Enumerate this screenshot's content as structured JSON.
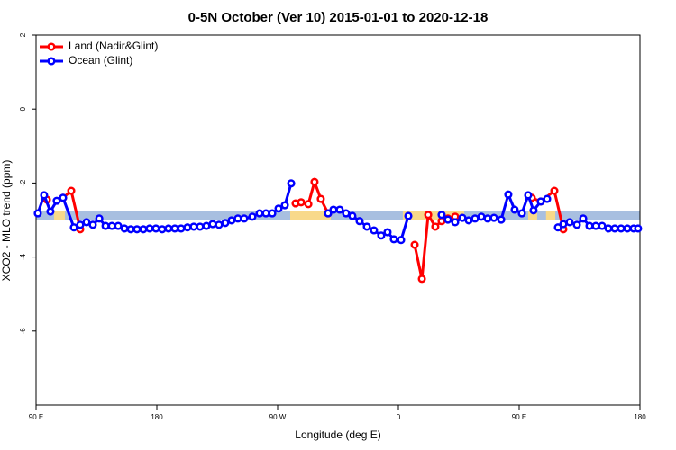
{
  "chart_data": {
    "type": "line",
    "title": "0-5N October (Ver 10)   2015-01-01 to 2020-12-18",
    "x_label": "Longitude (deg E)",
    "y_label": "XCO2 - MLO trend (ppm)",
    "xlim": [
      90,
      540
    ],
    "ylim": [
      -8,
      2
    ],
    "xticks": [
      {
        "value": 90,
        "label": "90 E"
      },
      180,
      {
        "value": 270,
        "label": "90 W"
      },
      {
        "value": 360,
        "label": "0"
      },
      {
        "value": 450,
        "label": "90 E"
      },
      {
        "value": 540,
        "label": "180"
      }
    ],
    "yticks": [
      -6,
      -4,
      -2,
      0,
      2
    ],
    "legend": "top-left",
    "background_bands": [
      {
        "x": [
          90,
          540
        ],
        "y": [
          -3.0,
          -2.75
        ],
        "color": "#a8bfe0"
      },
      {
        "x": [
          103.4,
          111.5
        ],
        "y": [
          -3.0,
          -2.75
        ],
        "color": "#f8d98a"
      },
      {
        "x": [
          279.4,
          309.6
        ],
        "y": [
          -3.0,
          -2.75
        ],
        "color": "#f8d98a"
      },
      {
        "x": [
          363.3,
          409
        ],
        "y": [
          -3.0,
          -2.75
        ],
        "color": "#f8d98a"
      },
      {
        "x": [
          456.7,
          463.4
        ],
        "y": [
          -3.0,
          -2.75
        ],
        "color": "#f8d98a"
      },
      {
        "x": [
          470,
          476.9
        ],
        "y": [
          -3.0,
          -2.75
        ],
        "color": "#f8d98a"
      }
    ],
    "series": [
      {
        "name": "Land (Nadir&Glint)",
        "color": "#ff0000",
        "x": [
          98.1,
          105,
          110.1,
          116.2,
          122.9,
          275.4,
          283.4,
          287.5,
          292.9,
          297.5,
          302.2,
          307.6,
          367.4,
          372.1,
          377.5,
          382.2,
          387.5,
          392.2,
          396.9,
          402.3,
          408,
          459.4,
          466.1,
          476.2,
          482.9
        ],
        "values": [
          -2.45,
          null,
          -2.4,
          -2.21,
          -3.25,
          null,
          -2.55,
          -2.52,
          -2.57,
          -1.97,
          -2.43,
          -2.82,
          null,
          -3.67,
          -4.59,
          -2.86,
          -3.18,
          -3.03,
          -2.96,
          -2.91,
          null,
          -2.4,
          -2.5,
          -2.21,
          -3.25
        ]
      },
      {
        "name": "Ocean (Glint)",
        "color": "#0000ff",
        "x": [
          91.3,
          96.0,
          100.7,
          105.4,
          110.1,
          118.2,
          122.9,
          127.6,
          132.3,
          137.1,
          141.8,
          146.5,
          151.2,
          155.9,
          160.6,
          165.2,
          169.9,
          174.6,
          179.3,
          184.0,
          188.7,
          193.4,
          198.1,
          202.8,
          207.5,
          212.2,
          216.9,
          221.6,
          226.3,
          231.0,
          235.7,
          240.4,
          245.1,
          251.2,
          256.6,
          261.3,
          266.0,
          270.7,
          275.4,
          280.1,
          290,
          307.6,
          311.6,
          316.3,
          321.0,
          325.7,
          331.1,
          336.5,
          341.8,
          347.2,
          351.9,
          356.6,
          362.0,
          367.4,
          380,
          392.2,
          396.9,
          402.3,
          407.7,
          412.4,
          417.1,
          421.8,
          426.5,
          431.2,
          436.6,
          441.9,
          446.6,
          452.0,
          456.7,
          460.7,
          466.1,
          470.8,
          475,
          478.9,
          482.9,
          487.6,
          493.0,
          497.7,
          502.4,
          507.1,
          511.8,
          516.5,
          521.2,
          525.9,
          530.6,
          535.3,
          538.6
        ],
        "values": [
          -2.82,
          -2.33,
          -2.77,
          -2.48,
          -2.4,
          -3.2,
          -3.13,
          -3.06,
          -3.13,
          -2.96,
          -3.16,
          -3.16,
          -3.16,
          -3.23,
          -3.25,
          -3.25,
          -3.25,
          -3.23,
          -3.23,
          -3.25,
          -3.23,
          -3.23,
          -3.23,
          -3.2,
          -3.18,
          -3.18,
          -3.16,
          -3.11,
          -3.13,
          -3.08,
          -3.01,
          -2.96,
          -2.96,
          -2.91,
          -2.82,
          -2.82,
          -2.82,
          -2.69,
          -2.6,
          -2.01,
          null,
          -2.82,
          -2.72,
          -2.72,
          -2.82,
          -2.89,
          -3.03,
          -3.18,
          -3.28,
          -3.42,
          -3.33,
          -3.52,
          -3.54,
          -2.89,
          null,
          -2.86,
          -2.99,
          -3.06,
          -2.94,
          -3.01,
          -2.96,
          -2.91,
          -2.96,
          -2.94,
          -2.99,
          -2.31,
          -2.72,
          -2.82,
          -2.33,
          -2.74,
          -2.5,
          -2.43,
          null,
          -3.2,
          -3.11,
          -3.06,
          -3.13,
          -2.96,
          -3.16,
          -3.16,
          -3.16,
          -3.23,
          -3.23,
          -3.23,
          -3.23,
          -3.23,
          -3.23
        ]
      }
    ]
  }
}
